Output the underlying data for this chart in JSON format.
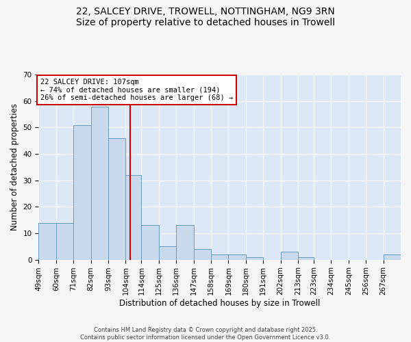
{
  "title_line1": "22, SALCEY DRIVE, TROWELL, NOTTINGHAM, NG9 3RN",
  "title_line2": "Size of property relative to detached houses in Trowell",
  "xlabel": "Distribution of detached houses by size in Trowell",
  "ylabel": "Number of detached properties",
  "bin_labels": [
    "49sqm",
    "60sqm",
    "71sqm",
    "82sqm",
    "93sqm",
    "104sqm",
    "114sqm",
    "125sqm",
    "136sqm",
    "147sqm",
    "158sqm",
    "169sqm",
    "180sqm",
    "191sqm",
    "202sqm",
    "213sqm",
    "223sqm",
    "234sqm",
    "245sqm",
    "256sqm",
    "267sqm"
  ],
  "bar_values": [
    14,
    14,
    51,
    58,
    46,
    32,
    13,
    5,
    13,
    4,
    2,
    2,
    1,
    0,
    3,
    1,
    0,
    0,
    0,
    0,
    2
  ],
  "bin_edges": [
    49,
    60,
    71,
    82,
    93,
    104,
    114,
    125,
    136,
    147,
    158,
    169,
    180,
    191,
    202,
    213,
    223,
    234,
    245,
    256,
    267,
    278
  ],
  "bar_facecolor": "#c8d9ec",
  "bar_edgecolor": "#6699bb",
  "vline_x": 107,
  "vline_color": "#cc0000",
  "annotation_text_line1": "22 SALCEY DRIVE: 107sqm",
  "annotation_text_line2": "← 74% of detached houses are smaller (194)",
  "annotation_text_line3": "26% of semi-detached houses are larger (68) →",
  "annotation_facecolor": "#ffffff",
  "annotation_edgecolor": "#cc0000",
  "ylim": [
    0,
    70
  ],
  "yticks": [
    0,
    10,
    20,
    30,
    40,
    50,
    60,
    70
  ],
  "fig_facecolor": "#f5f5f5",
  "ax_facecolor": "#dce8f5",
  "grid_color": "#ffffff",
  "footer_text": "Contains HM Land Registry data © Crown copyright and database right 2025.\nContains public sector information licensed under the Open Government Licence v3.0.",
  "title_fontsize": 10,
  "axis_label_fontsize": 8.5,
  "tick_fontsize": 7.5,
  "annotation_fontsize": 7.5
}
